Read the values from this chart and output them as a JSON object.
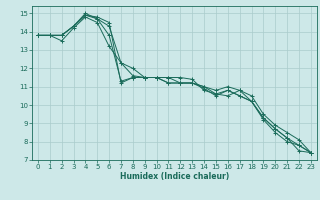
{
  "xlabel": "Humidex (Indice chaleur)",
  "xlim": [
    -0.5,
    23.5
  ],
  "ylim": [
    7,
    15.4
  ],
  "background_color": "#cde8e8",
  "grid_color": "#aacccc",
  "line_color": "#1a6b5a",
  "lines": [
    {
      "x": [
        0,
        1,
        2,
        3,
        4,
        5,
        6,
        7,
        8,
        9,
        10,
        11,
        12,
        13,
        14,
        15,
        16,
        17,
        18,
        19,
        20,
        21,
        22,
        23
      ],
      "y": [
        13.8,
        13.8,
        13.8,
        14.3,
        14.9,
        14.8,
        14.5,
        11.2,
        11.5,
        11.5,
        11.5,
        11.5,
        11.5,
        11.4,
        10.8,
        10.6,
        10.8,
        10.5,
        10.2,
        9.3,
        8.7,
        8.2,
        7.5,
        7.4
      ]
    },
    {
      "x": [
        0,
        1,
        2,
        3,
        4,
        5,
        6,
        7,
        8,
        9,
        10,
        11,
        12,
        13,
        14,
        15,
        16,
        17,
        18,
        19,
        20,
        21,
        22,
        23
      ],
      "y": [
        13.8,
        13.8,
        13.8,
        14.3,
        15.0,
        14.7,
        14.3,
        12.3,
        11.6,
        11.5,
        11.5,
        11.2,
        11.2,
        11.2,
        11.0,
        10.8,
        11.0,
        10.8,
        10.5,
        9.5,
        8.9,
        8.5,
        8.1,
        7.4
      ]
    },
    {
      "x": [
        0,
        1,
        2,
        3,
        4,
        5,
        6,
        7,
        8,
        9,
        10,
        11,
        12,
        13,
        14,
        15,
        16,
        17,
        18,
        19,
        20,
        21,
        22,
        23
      ],
      "y": [
        13.8,
        13.8,
        13.5,
        14.2,
        14.8,
        14.5,
        13.2,
        12.3,
        12.0,
        11.5,
        11.5,
        11.2,
        11.2,
        11.2,
        11.0,
        10.6,
        10.5,
        10.8,
        10.2,
        9.2,
        8.5,
        8.0,
        7.8,
        7.4
      ]
    },
    {
      "x": [
        0,
        1,
        2,
        3,
        4,
        5,
        6,
        7,
        8,
        9,
        10,
        11,
        12,
        13,
        14,
        15,
        16,
        17,
        18,
        19,
        20,
        21,
        22,
        23
      ],
      "y": [
        13.8,
        13.8,
        13.8,
        14.3,
        14.9,
        14.7,
        13.8,
        11.3,
        11.5,
        11.5,
        11.5,
        11.5,
        11.2,
        11.2,
        10.9,
        10.5,
        10.8,
        10.5,
        10.2,
        9.3,
        8.7,
        8.2,
        7.8,
        7.4
      ]
    }
  ],
  "yticks": [
    7,
    8,
    9,
    10,
    11,
    12,
    13,
    14,
    15
  ],
  "xticks": [
    0,
    1,
    2,
    3,
    4,
    5,
    6,
    7,
    8,
    9,
    10,
    11,
    12,
    13,
    14,
    15,
    16,
    17,
    18,
    19,
    20,
    21,
    22,
    23
  ]
}
